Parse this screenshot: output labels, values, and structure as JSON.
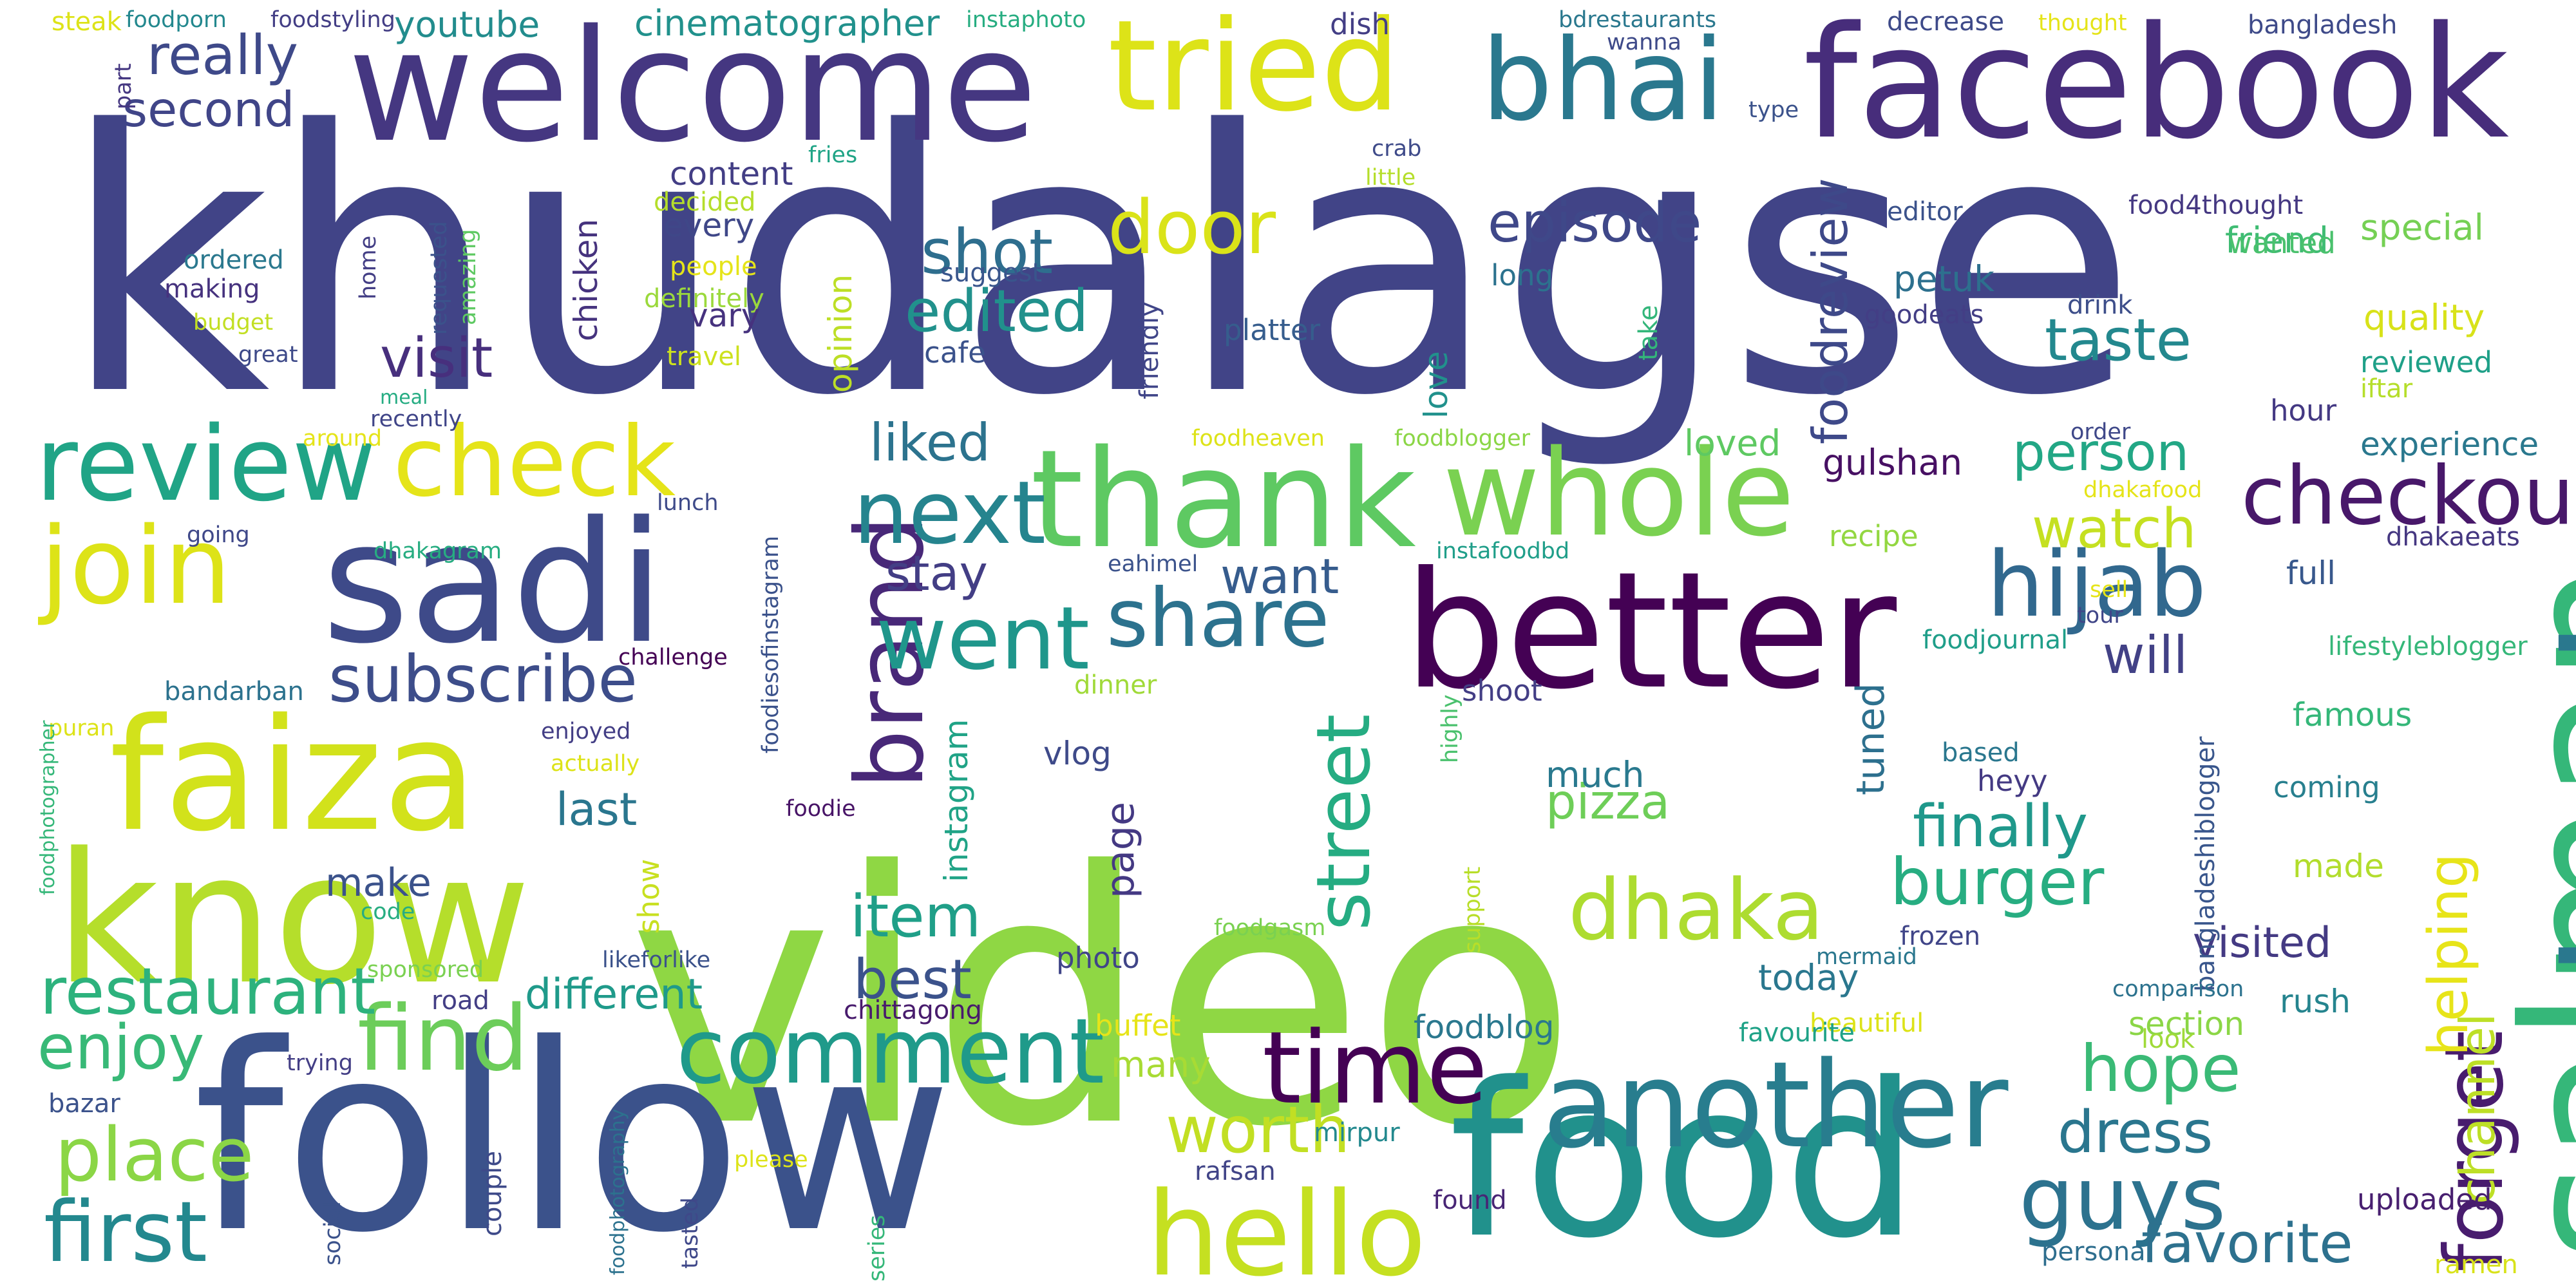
{
  "words": [
    {
      "id": "khudalagse",
      "text": "khudalagse",
      "color": "#414487"
    },
    {
      "id": "video",
      "text": "video",
      "color": "#8fd744"
    },
    {
      "id": "follow",
      "text": "follow",
      "color": "#3b528b"
    },
    {
      "id": "food",
      "text": "food",
      "color": "#21918c"
    },
    {
      "id": "welcome",
      "text": "welcome",
      "color": "#453781"
    },
    {
      "id": "facebook",
      "text": "facebook",
      "color": "#472d7b"
    },
    {
      "id": "tried",
      "text": "tried",
      "color": "#dde318"
    },
    {
      "id": "bhai",
      "text": "bhai",
      "color": "#2a788e"
    },
    {
      "id": "salman",
      "text": "salman",
      "color": "#35b779"
    },
    {
      "id": "back",
      "text": "back",
      "color": "#2a788e"
    },
    {
      "id": "better",
      "text": "better",
      "color": "#440154"
    },
    {
      "id": "sadi",
      "text": "sadi",
      "color": "#3e4a89"
    },
    {
      "id": "thank",
      "text": "thank",
      "color": "#5ec962"
    },
    {
      "id": "whole",
      "text": "whole",
      "color": "#7ad151"
    },
    {
      "id": "faiza",
      "text": "faiza",
      "color": "#d2e21b"
    },
    {
      "id": "know",
      "text": "know",
      "color": "#b5de2b"
    },
    {
      "id": "another",
      "text": "another",
      "color": "#287d8e"
    },
    {
      "id": "hello",
      "text": "hello",
      "color": "#c5e021"
    },
    {
      "id": "review",
      "text": "review",
      "color": "#20a486"
    },
    {
      "id": "join",
      "text": "join",
      "color": "#dde318"
    },
    {
      "id": "check",
      "text": "check",
      "color": "#e5e419"
    },
    {
      "id": "brand",
      "text": "brand",
      "color": "#482878"
    },
    {
      "id": "next",
      "text": "next",
      "color": "#25848e"
    },
    {
      "id": "went",
      "text": "went",
      "color": "#1f968b"
    },
    {
      "id": "share",
      "text": "share",
      "color": "#2c728e"
    },
    {
      "id": "hijab",
      "text": "hijab",
      "color": "#31688e"
    },
    {
      "id": "checkout",
      "text": "checkout",
      "color": "#48186a"
    },
    {
      "id": "comment",
      "text": "comment",
      "color": "#1f9a8a"
    },
    {
      "id": "time",
      "text": "time",
      "color": "#440154"
    },
    {
      "id": "dhaka",
      "text": "dhaka",
      "color": "#addc30"
    },
    {
      "id": "street",
      "text": "street",
      "color": "#25ac82"
    },
    {
      "id": "find",
      "text": "find",
      "color": "#6ccd5a"
    },
    {
      "id": "restaurant",
      "text": "restaurant",
      "color": "#2db27d"
    },
    {
      "id": "subscribe",
      "text": "subscribe",
      "color": "#3d4d8a"
    },
    {
      "id": "first",
      "text": "first",
      "color": "#23888e"
    },
    {
      "id": "place",
      "text": "place",
      "color": "#8bd646"
    },
    {
      "id": "enjoy",
      "text": "enjoy",
      "color": "#38b977"
    },
    {
      "id": "guys",
      "text": "guys",
      "color": "#2c728e"
    },
    {
      "id": "forget",
      "text": "forget",
      "color": "#481c6e"
    },
    {
      "id": "helping",
      "text": "helping",
      "color": "#e7e419"
    },
    {
      "id": "channel",
      "text": "channel",
      "color": "#bddf26"
    },
    {
      "id": "burger",
      "text": "burger",
      "color": "#27ad81"
    },
    {
      "id": "finally",
      "text": "finally",
      "color": "#1f988b"
    },
    {
      "id": "hope",
      "text": "hope",
      "color": "#3aba76"
    },
    {
      "id": "dress",
      "text": "dress",
      "color": "#2a768e"
    },
    {
      "id": "favorite",
      "text": "favorite",
      "color": "#2d718e"
    },
    {
      "id": "worth",
      "text": "worth",
      "color": "#c2df23"
    },
    {
      "id": "taste",
      "text": "taste",
      "color": "#23888e"
    },
    {
      "id": "episode",
      "text": "episode",
      "color": "#3f4889"
    },
    {
      "id": "door",
      "text": "door",
      "color": "#dae319"
    },
    {
      "id": "shot",
      "text": "shot",
      "color": "#2e6e8e"
    },
    {
      "id": "edited",
      "text": "edited",
      "color": "#21918c"
    },
    {
      "id": "foodreview",
      "text": "foodreview",
      "color": "#3e4989"
    },
    {
      "id": "person",
      "text": "person",
      "color": "#22a785"
    },
    {
      "id": "watch",
      "text": "watch",
      "color": "#c5e021"
    },
    {
      "id": "will",
      "text": "will",
      "color": "#424186"
    },
    {
      "id": "item",
      "text": "item",
      "color": "#1f9f88"
    },
    {
      "id": "best",
      "text": "best",
      "color": "#3b528b"
    },
    {
      "id": "pizza",
      "text": "pizza",
      "color": "#6ece58"
    },
    {
      "id": "much",
      "text": "much",
      "color": "#29798e"
    },
    {
      "id": "liked",
      "text": "liked",
      "color": "#2c738e"
    },
    {
      "id": "stay",
      "text": "stay",
      "color": "#433e85"
    },
    {
      "id": "want",
      "text": "want",
      "color": "#365c8d"
    },
    {
      "id": "really",
      "text": "really",
      "color": "#3e4989"
    },
    {
      "id": "second",
      "text": "second",
      "color": "#404588"
    },
    {
      "id": "youtube",
      "text": "youtube",
      "color": "#228c8d"
    },
    {
      "id": "cinematographer",
      "text": "cinematographer",
      "color": "#21918c"
    },
    {
      "id": "visit",
      "text": "visit",
      "color": "#472f7d"
    },
    {
      "id": "last",
      "text": "last",
      "color": "#2a768e"
    },
    {
      "id": "make",
      "text": "make",
      "color": "#3b528b"
    },
    {
      "id": "different",
      "text": "different",
      "color": "#1f9a8a"
    },
    {
      "id": "visited",
      "text": "visited",
      "color": "#443a83"
    },
    {
      "id": "experience",
      "text": "experience",
      "color": "#2a788e"
    },
    {
      "id": "loved",
      "text": "loved",
      "color": "#5ec962"
    },
    {
      "id": "quality",
      "text": "quality",
      "color": "#d8e219"
    },
    {
      "id": "special",
      "text": "special",
      "color": "#75d054"
    },
    {
      "id": "friend",
      "text": "friend",
      "color": "#3fbc73"
    },
    {
      "id": "wanted",
      "text": "wanted",
      "color": "#4ac16d"
    },
    {
      "id": "petuk",
      "text": "petuk",
      "color": "#2d708e"
    },
    {
      "id": "gulshan",
      "text": "gulshan",
      "color": "#471063"
    },
    {
      "id": "tuned",
      "text": "tuned",
      "color": "#2d708e"
    },
    {
      "id": "vlog",
      "text": "vlog",
      "color": "#3e4a89"
    },
    {
      "id": "page",
      "text": "page",
      "color": "#443983"
    },
    {
      "id": "instagram",
      "text": "instagram",
      "color": "#20a386"
    },
    {
      "id": "today",
      "text": "today",
      "color": "#2a778e"
    },
    {
      "id": "foodblog",
      "text": "foodblog",
      "color": "#2a788e"
    },
    {
      "id": "many",
      "text": "many",
      "color": "#a8db34"
    },
    {
      "id": "section",
      "text": "section",
      "color": "#8bd646"
    },
    {
      "id": "famous",
      "text": "famous",
      "color": "#35b779"
    },
    {
      "id": "coming",
      "text": "coming",
      "color": "#277f8e"
    },
    {
      "id": "made",
      "text": "made",
      "color": "#b2dd2d"
    },
    {
      "id": "rush",
      "text": "rush",
      "color": "#25848e"
    },
    {
      "id": "content",
      "text": "content",
      "color": "#433e85"
    },
    {
      "id": "every",
      "text": "every",
      "color": "#3f4788"
    },
    {
      "id": "decided",
      "text": "decided",
      "color": "#b5de2b"
    },
    {
      "id": "people",
      "text": "people",
      "color": "#e5e419"
    },
    {
      "id": "definitely",
      "text": "definitely",
      "color": "#9bd93c"
    },
    {
      "id": "vary",
      "text": "vary",
      "color": "#46327e"
    },
    {
      "id": "travel",
      "text": "travel",
      "color": "#cde11d"
    },
    {
      "id": "opinion",
      "text": "opinion",
      "color": "#bddf26"
    },
    {
      "id": "chicken",
      "text": "chicken",
      "color": "#46337e"
    },
    {
      "id": "cafe",
      "text": "cafe",
      "color": "#3b528b"
    },
    {
      "id": "suggest",
      "text": "suggest",
      "color": "#39558c"
    },
    {
      "id": "platter",
      "text": "platter",
      "color": "#365d8d"
    },
    {
      "id": "love",
      "text": "love",
      "color": "#21918c"
    },
    {
      "id": "friendly",
      "text": "friendly",
      "color": "#404588"
    },
    {
      "id": "long",
      "text": "long",
      "color": "#2c728e"
    },
    {
      "id": "take",
      "text": "take",
      "color": "#33b67a"
    },
    {
      "id": "editor",
      "text": "editor",
      "color": "#3b528b"
    },
    {
      "id": "goodeats",
      "text": "goodeats",
      "color": "#433e85"
    },
    {
      "id": "food4thought",
      "text": "food4thought",
      "color": "#453882"
    },
    {
      "id": "drink",
      "text": "drink",
      "color": "#3d4e8a"
    },
    {
      "id": "reviewed",
      "text": "reviewed",
      "color": "#1fa088"
    },
    {
      "id": "iftar",
      "text": "iftar",
      "color": "#b5de2b"
    },
    {
      "id": "hour",
      "text": "hour",
      "color": "#443983"
    },
    {
      "id": "order",
      "text": "order",
      "color": "#3f4889"
    },
    {
      "id": "dhakafood",
      "text": "dhakafood",
      "color": "#e5e419"
    },
    {
      "id": "dhakaeats",
      "text": "dhakaeats",
      "color": "#453781"
    },
    {
      "id": "full",
      "text": "full",
      "color": "#38588c"
    },
    {
      "id": "sell",
      "text": "sell",
      "color": "#e5e419"
    },
    {
      "id": "tour",
      "text": "tour",
      "color": "#404688"
    },
    {
      "id": "foodjournal",
      "text": "foodjournal",
      "color": "#1f9e89"
    },
    {
      "id": "lifestyleblogger",
      "text": "lifestyleblogger",
      "color": "#35b779"
    },
    {
      "id": "recipe",
      "text": "recipe",
      "color": "#93d741"
    },
    {
      "id": "based",
      "text": "based",
      "color": "#2a778e"
    },
    {
      "id": "heyy",
      "text": "heyy",
      "color": "#443a83"
    },
    {
      "id": "frozen",
      "text": "frozen",
      "color": "#404588"
    },
    {
      "id": "bangladeshiblogger",
      "text": "bangladeshiblogger",
      "color": "#39568c"
    },
    {
      "id": "mermaid",
      "text": "mermaid",
      "color": "#2a778e"
    },
    {
      "id": "comparison",
      "text": "comparison",
      "color": "#2c728e"
    },
    {
      "id": "look",
      "text": "look",
      "color": "#a0da39"
    },
    {
      "id": "uploaded",
      "text": "uploaded",
      "color": "#481f70"
    },
    {
      "id": "personal",
      "text": "personal",
      "color": "#2e6e8e"
    },
    {
      "id": "ramen",
      "text": "ramen",
      "color": "#d8e219"
    },
    {
      "id": "beautiful",
      "text": "beautiful",
      "color": "#dde318"
    },
    {
      "id": "favourite",
      "text": "favourite",
      "color": "#1fa287"
    },
    {
      "id": "mirpur",
      "text": "mirpur",
      "color": "#23898e"
    },
    {
      "id": "found",
      "text": "found",
      "color": "#482575"
    },
    {
      "id": "rafsan",
      "text": "rafsan",
      "color": "#414487"
    },
    {
      "id": "buffet",
      "text": "buffet",
      "color": "#e7e419"
    },
    {
      "id": "support",
      "text": "support",
      "color": "#b8de29"
    },
    {
      "id": "highly",
      "text": "highly",
      "color": "#4ac16d"
    },
    {
      "id": "shoot",
      "text": "shoot",
      "color": "#433e85"
    },
    {
      "id": "foodgasm",
      "text": "foodgasm",
      "color": "#7ad151"
    },
    {
      "id": "photo",
      "text": "photo",
      "color": "#404588"
    },
    {
      "id": "chittagong",
      "text": "chittagong",
      "color": "#481b6d"
    },
    {
      "id": "likeforlike",
      "text": "likeforlike",
      "color": "#3b528b"
    },
    {
      "id": "road",
      "text": "road",
      "color": "#433e85"
    },
    {
      "id": "sponsored",
      "text": "sponsored",
      "color": "#7ad151"
    },
    {
      "id": "code",
      "text": "code",
      "color": "#27ad81"
    },
    {
      "id": "show",
      "text": "show",
      "color": "#c8e020"
    },
    {
      "id": "foodie",
      "text": "foodie",
      "color": "#481467"
    },
    {
      "id": "foodiesofinstagram",
      "text": "foodiesofinstagram",
      "color": "#3b528b"
    },
    {
      "id": "enjoyed",
      "text": "enjoyed",
      "color": "#433e85"
    },
    {
      "id": "actually",
      "text": "actually",
      "color": "#dde318"
    },
    {
      "id": "challenge",
      "text": "challenge",
      "color": "#440154"
    },
    {
      "id": "bandarban",
      "text": "bandarban",
      "color": "#2c728e"
    },
    {
      "id": "puran",
      "text": "puran",
      "color": "#dde318"
    },
    {
      "id": "foodphotographer",
      "text": "foodphotographer",
      "color": "#35b779"
    },
    {
      "id": "going",
      "text": "going",
      "color": "#3f4889"
    },
    {
      "id": "dhakagram",
      "text": "dhakagram",
      "color": "#27ad81"
    },
    {
      "id": "lunch",
      "text": "lunch",
      "color": "#3e4a89"
    },
    {
      "id": "eahimel",
      "text": "eahimel",
      "color": "#3b528b"
    },
    {
      "id": "instafoodbd",
      "text": "instafoodbd",
      "color": "#1f9e89"
    },
    {
      "id": "dinner",
      "text": "dinner",
      "color": "#a0da39"
    },
    {
      "id": "foodheaven",
      "text": "foodheaven",
      "color": "#dde318"
    },
    {
      "id": "foodblogger",
      "text": "foodblogger",
      "color": "#8bd646"
    },
    {
      "id": "around",
      "text": "around",
      "color": "#e5e419"
    },
    {
      "id": "recently",
      "text": "recently",
      "color": "#404588"
    },
    {
      "id": "meal",
      "text": "meal",
      "color": "#25ac82"
    },
    {
      "id": "amazing",
      "text": "amazing",
      "color": "#5ec962"
    },
    {
      "id": "requested",
      "text": "requested",
      "color": "#3b528b"
    },
    {
      "id": "home",
      "text": "home",
      "color": "#433e85"
    },
    {
      "id": "budget",
      "text": "budget",
      "color": "#c2df23"
    },
    {
      "id": "great",
      "text": "great",
      "color": "#3e4a89"
    },
    {
      "id": "making",
      "text": "making",
      "color": "#46327e"
    },
    {
      "id": "ordered",
      "text": "ordered",
      "color": "#2a788e"
    },
    {
      "id": "steak",
      "text": "steak",
      "color": "#dde318"
    },
    {
      "id": "foodporn",
      "text": "foodporn",
      "color": "#23888e"
    },
    {
      "id": "foodstyling",
      "text": "foodstyling",
      "color": "#433e85"
    },
    {
      "id": "part",
      "text": "part",
      "color": "#453781"
    },
    {
      "id": "instaphoto",
      "text": "instaphoto",
      "color": "#27ad81"
    },
    {
      "id": "fries",
      "text": "fries",
      "color": "#20a486"
    },
    {
      "id": "dish",
      "text": "dish",
      "color": "#433e85"
    },
    {
      "id": "crab",
      "text": "crab",
      "color": "#3e4a89"
    },
    {
      "id": "little",
      "text": "little",
      "color": "#b5de2b"
    },
    {
      "id": "bdrestaurants",
      "text": "bdrestaurants",
      "color": "#2a788e"
    },
    {
      "id": "wanna",
      "text": "wanna",
      "color": "#3e4a89"
    },
    {
      "id": "decrease",
      "text": "decrease",
      "color": "#3e4a89"
    },
    {
      "id": "thought",
      "text": "thought",
      "color": "#e5e419"
    },
    {
      "id": "bangladesh",
      "text": "bangladesh",
      "color": "#3e4a89"
    },
    {
      "id": "type",
      "text": "type",
      "color": "#3b528b"
    },
    {
      "id": "trying",
      "text": "trying",
      "color": "#433e85"
    },
    {
      "id": "bazar",
      "text": "bazar",
      "color": "#3b528b"
    },
    {
      "id": "couple",
      "text": "couple",
      "color": "#3e4a89"
    },
    {
      "id": "social",
      "text": "social",
      "color": "#3b528b"
    },
    {
      "id": "foodphotography",
      "text": "foodphotography",
      "color": "#2c728e"
    },
    {
      "id": "tasted",
      "text": "tasted",
      "color": "#3f4889"
    },
    {
      "id": "please",
      "text": "please",
      "color": "#dde318"
    },
    {
      "id": "series",
      "text": "series",
      "color": "#35b779"
    }
  ]
}
